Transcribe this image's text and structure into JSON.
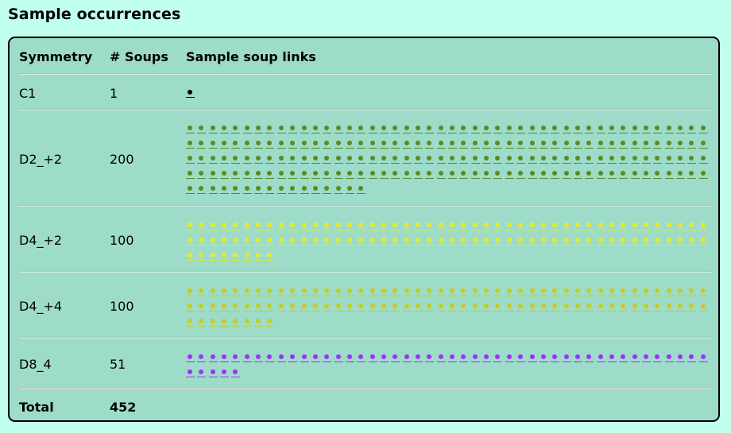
{
  "heading": "Sample occurrences",
  "table": {
    "headers": [
      "Symmetry",
      "# Soups",
      "Sample soup links"
    ],
    "rows": [
      {
        "symmetry": "C1",
        "soups": "1",
        "link_count": 1,
        "color": "#000000"
      },
      {
        "symmetry": "D2_+2",
        "soups": "200",
        "link_count": 200,
        "color": "#5a8a22"
      },
      {
        "symmetry": "D4_+2",
        "soups": "100",
        "link_count": 100,
        "color": "#e7e92a"
      },
      {
        "symmetry": "D4_+4",
        "soups": "100",
        "link_count": 100,
        "color": "#c6cd20"
      },
      {
        "symmetry": "D8_4",
        "soups": "51",
        "link_count": 51,
        "color": "#a030ff"
      }
    ],
    "total": {
      "label": "Total",
      "value": "452"
    }
  },
  "colors": {
    "page_bg": "#c0ffee",
    "panel_bg": "#9ddcc8",
    "border": "#000000"
  }
}
